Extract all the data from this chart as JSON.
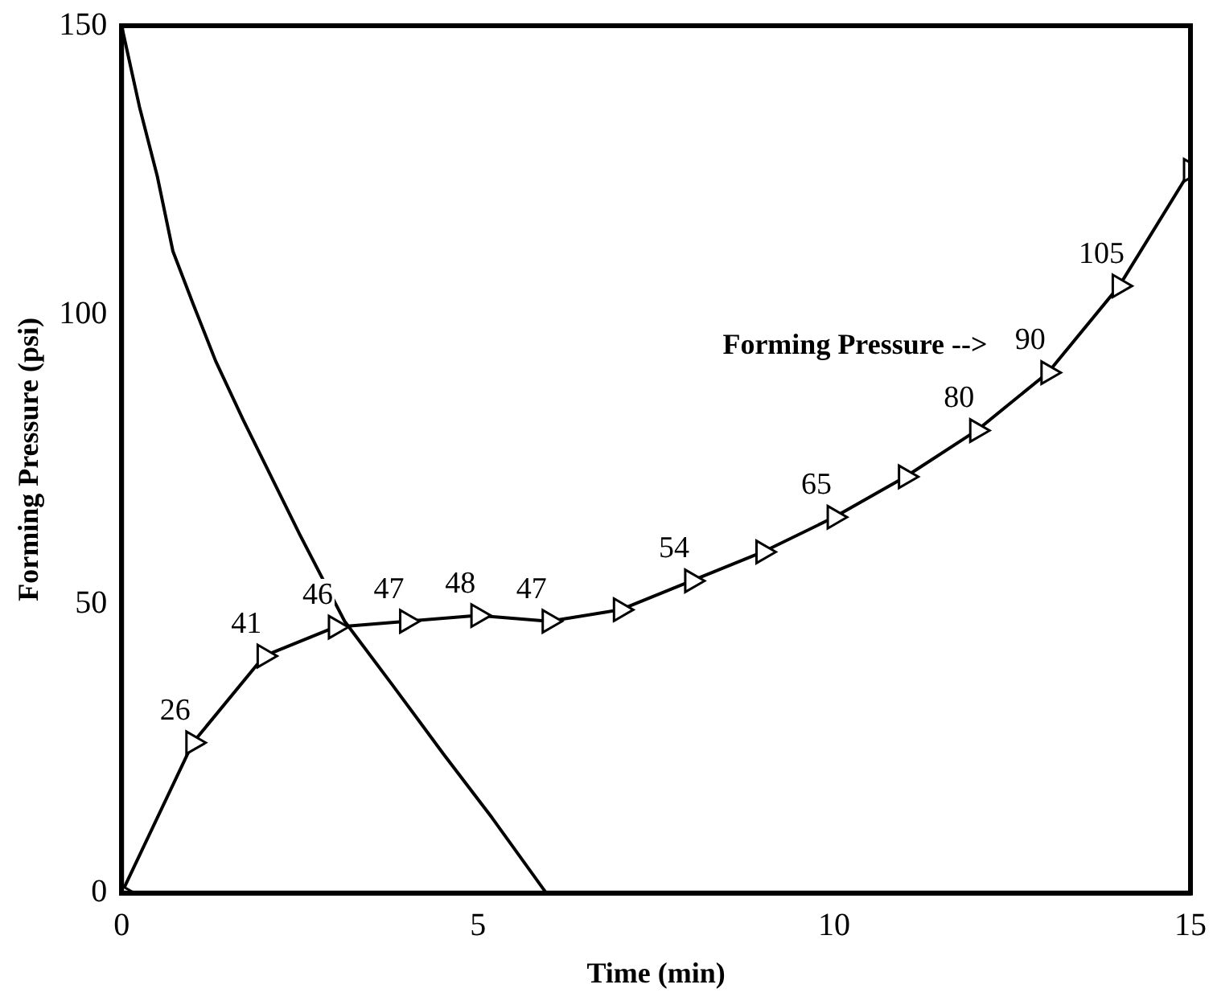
{
  "chart_data": {
    "type": "line",
    "xlabel": "Time (min)",
    "ylabel": "Forming Pressure (psi)",
    "xlim": [
      0,
      15
    ],
    "xticks": [
      0,
      5,
      10,
      15
    ],
    "ylim": [
      0,
      150
    ],
    "yticks": [
      0,
      50,
      100,
      150
    ],
    "grid": false,
    "legend": false,
    "marker": "triangle",
    "line_style": "solid",
    "series": [
      {
        "x": [
          0,
          1,
          2,
          3,
          4,
          5,
          6,
          7,
          8,
          9,
          10,
          11,
          12,
          13,
          14,
          15
        ],
        "values": [
          0,
          26,
          41,
          46,
          47,
          48,
          47,
          49,
          54,
          59,
          65,
          72,
          80,
          90,
          105,
          125
        ],
        "value_labels": [
          null,
          "26",
          "41",
          "46",
          "47",
          "48",
          "47",
          null,
          "54",
          null,
          "65",
          null,
          "80",
          "90",
          "105",
          null
        ],
        "color": "#000000"
      },
      {
        "x": [
          0,
          0.25,
          0.5,
          0.72,
          1,
          1.32,
          1.7,
          2.02,
          2.5,
          3.13,
          3.8,
          4.52,
          5.2,
          5.96
        ],
        "values": [
          150,
          136,
          124,
          111,
          102,
          92,
          82,
          74,
          62,
          47,
          36,
          24,
          13,
          0
        ],
        "color": "#000000",
        "marker": "none"
      }
    ],
    "annotations": [
      "Forming Pressure -->"
    ]
  }
}
